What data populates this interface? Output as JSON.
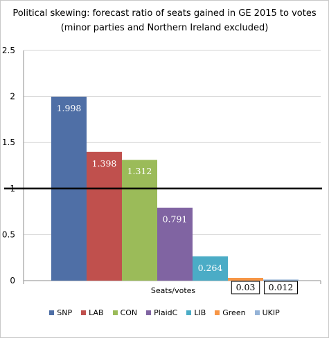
{
  "chart_data": {
    "type": "bar",
    "title": "Political skewing: forecast ratio of seats gained in GE 2015 to votes",
    "subtitle": "(minor parties and Northern Ireland excluded)",
    "xlabel": "Seats/votes",
    "ylabel": "",
    "ylim": [
      0,
      2.5
    ],
    "yticks": [
      "0",
      "0.5",
      "1",
      "1.5",
      "2",
      "2.5"
    ],
    "grid": true,
    "reference_line": 1,
    "legend_position": "bottom",
    "series": [
      {
        "name": "SNP",
        "value": 1.998,
        "label": "1.998",
        "color": "#4F6FA6"
      },
      {
        "name": "LAB",
        "value": 1.398,
        "label": "1.398",
        "color": "#C0504D"
      },
      {
        "name": "CON",
        "value": 1.312,
        "label": "1.312",
        "color": "#9BBB59"
      },
      {
        "name": "PlaidC",
        "value": 0.791,
        "label": "0.791",
        "color": "#8064A2"
      },
      {
        "name": "LIB",
        "value": 0.264,
        "label": "0.264",
        "color": "#4BACC6"
      },
      {
        "name": "Green",
        "value": 0.03,
        "label": "0.03",
        "color": "#F79646"
      },
      {
        "name": "UKIP",
        "value": 0.012,
        "label": "0.012",
        "color": "#95B3D7"
      }
    ]
  }
}
